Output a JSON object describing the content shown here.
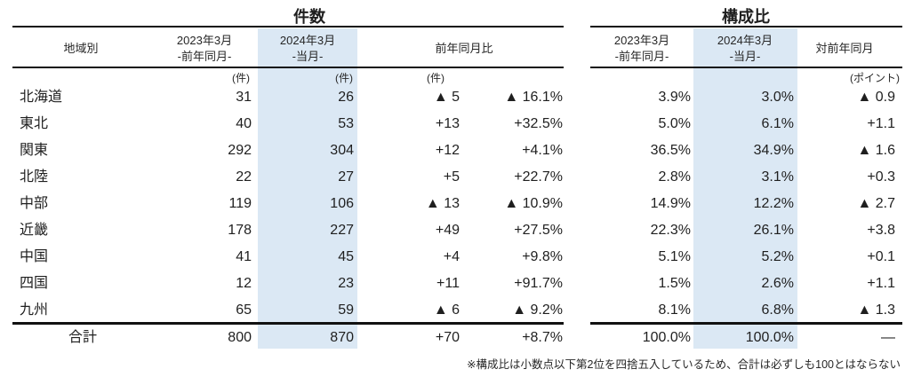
{
  "left_table": {
    "title": "件数",
    "headers": {
      "region": "地域別",
      "col2023_line1": "2023年3月",
      "col2023_line2": "-前年同月-",
      "col2024_line1": "2024年3月",
      "col2024_line2": "-当月-",
      "yoy": "前年同月比"
    },
    "units": {
      "c2023": "(件)",
      "c2024": "(件)",
      "diff": "(件)"
    }
  },
  "right_table": {
    "title": "構成比",
    "headers": {
      "col2023_line1": "2023年3月",
      "col2023_line2": "-前年同月-",
      "col2024_line1": "2024年3月",
      "col2024_line2": "-当月-",
      "yoy": "対前年同月"
    },
    "units": {
      "diff": "(ポイント)"
    }
  },
  "rows": [
    {
      "region": "北海道",
      "l2023": "31",
      "l2024": "26",
      "ldiff": "▲ 5",
      "lpct": "▲ 16.1%",
      "r2023": "3.9%",
      "r2024": "3.0%",
      "rdiff": "▲ 0.9"
    },
    {
      "region": "東北",
      "l2023": "40",
      "l2024": "53",
      "ldiff": "+13",
      "lpct": "+32.5%",
      "r2023": "5.0%",
      "r2024": "6.1%",
      "rdiff": "+1.1"
    },
    {
      "region": "関東",
      "l2023": "292",
      "l2024": "304",
      "ldiff": "+12",
      "lpct": "+4.1%",
      "r2023": "36.5%",
      "r2024": "34.9%",
      "rdiff": "▲ 1.6"
    },
    {
      "region": "北陸",
      "l2023": "22",
      "l2024": "27",
      "ldiff": "+5",
      "lpct": "+22.7%",
      "r2023": "2.8%",
      "r2024": "3.1%",
      "rdiff": "+0.3"
    },
    {
      "region": "中部",
      "l2023": "119",
      "l2024": "106",
      "ldiff": "▲ 13",
      "lpct": "▲ 10.9%",
      "r2023": "14.9%",
      "r2024": "12.2%",
      "rdiff": "▲ 2.7"
    },
    {
      "region": "近畿",
      "l2023": "178",
      "l2024": "227",
      "ldiff": "+49",
      "lpct": "+27.5%",
      "r2023": "22.3%",
      "r2024": "26.1%",
      "rdiff": "+3.8"
    },
    {
      "region": "中国",
      "l2023": "41",
      "l2024": "45",
      "ldiff": "+4",
      "lpct": "+9.8%",
      "r2023": "5.1%",
      "r2024": "5.2%",
      "rdiff": "+0.1"
    },
    {
      "region": "四国",
      "l2023": "12",
      "l2024": "23",
      "ldiff": "+11",
      "lpct": "+91.7%",
      "r2023": "1.5%",
      "r2024": "2.6%",
      "rdiff": "+1.1"
    },
    {
      "region": "九州",
      "l2023": "65",
      "l2024": "59",
      "ldiff": "▲ 6",
      "lpct": "▲ 9.2%",
      "r2023": "8.1%",
      "r2024": "6.8%",
      "rdiff": "▲ 1.3"
    }
  ],
  "total": {
    "label": "合計",
    "l2023": "800",
    "l2024": "870",
    "ldiff": "+70",
    "lpct": "+8.7%",
    "r2023": "100.0%",
    "r2024": "100.0%",
    "rdiff": "—"
  },
  "footnote": "※構成比は小数点以下第2位を四捨五入しているため、合計は必ずしも100とはならない",
  "colors": {
    "highlight": "#dbe8f4",
    "line": "#111111",
    "text": "#1f1f1f"
  }
}
